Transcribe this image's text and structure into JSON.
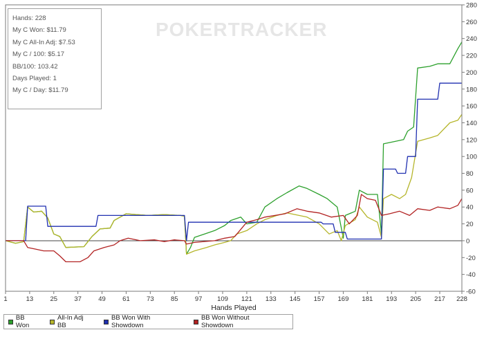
{
  "stats_box": {
    "lines": [
      "Hands: 228",
      "My C Won: $11.79",
      "My C All-In Adj: $7.53",
      "My C / 100: $5.17",
      "BB/100: 103.42",
      "Days Played: 1",
      "My C / Day: $11.79"
    ]
  },
  "watermark": {
    "text": "POKERTRACKER"
  },
  "legend": {
    "items": [
      {
        "label": "BB Won",
        "color": "#2ca02c"
      },
      {
        "label": "All-In Adj BB",
        "color": "#b5b52a"
      },
      {
        "label": "BB Won With Showdown",
        "color": "#1f2fb0"
      },
      {
        "label": "BB Won Without Showdown",
        "color": "#b22222"
      }
    ]
  },
  "chart_data": {
    "type": "line",
    "title": "",
    "xlabel": "Hands Played",
    "ylabel": "",
    "xlim": [
      1,
      228
    ],
    "ylim": [
      -60,
      280
    ],
    "x_ticks": [
      1,
      13,
      25,
      37,
      49,
      61,
      73,
      85,
      97,
      109,
      121,
      133,
      145,
      157,
      169,
      181,
      193,
      205,
      217,
      228
    ],
    "y_ticks": [
      -60,
      -40,
      -20,
      0,
      20,
      40,
      60,
      80,
      100,
      120,
      140,
      160,
      180,
      200,
      220,
      240,
      260,
      280
    ],
    "y_axis_side": "right",
    "grid": false,
    "legend_placement": "bottom",
    "series": [
      {
        "name": "BB Won",
        "color": "#2ca02c",
        "points": [
          [
            1,
            0
          ],
          [
            6,
            -3
          ],
          [
            10,
            -1
          ],
          [
            12,
            40
          ],
          [
            15,
            34
          ],
          [
            19,
            35
          ],
          [
            22,
            27
          ],
          [
            25,
            8
          ],
          [
            28,
            5
          ],
          [
            31,
            -8
          ],
          [
            40,
            -7
          ],
          [
            44,
            5
          ],
          [
            48,
            14
          ],
          [
            53,
            15
          ],
          [
            55,
            24
          ],
          [
            61,
            32
          ],
          [
            66,
            31
          ],
          [
            72,
            30
          ],
          [
            80,
            31
          ],
          [
            88,
            30
          ],
          [
            90,
            29
          ],
          [
            91,
            -16
          ],
          [
            93,
            -8
          ],
          [
            95,
            4
          ],
          [
            100,
            8
          ],
          [
            105,
            12
          ],
          [
            110,
            18
          ],
          [
            113,
            24
          ],
          [
            118,
            28
          ],
          [
            121,
            20
          ],
          [
            126,
            22
          ],
          [
            130,
            40
          ],
          [
            136,
            50
          ],
          [
            141,
            57
          ],
          [
            147,
            65
          ],
          [
            151,
            62
          ],
          [
            157,
            55
          ],
          [
            161,
            50
          ],
          [
            166,
            40
          ],
          [
            169,
            3
          ],
          [
            170,
            30
          ],
          [
            175,
            35
          ],
          [
            177,
            60
          ],
          [
            181,
            55
          ],
          [
            186,
            55
          ],
          [
            188,
            8
          ],
          [
            189,
            115
          ],
          [
            195,
            118
          ],
          [
            199,
            120
          ],
          [
            201,
            130
          ],
          [
            204,
            135
          ],
          [
            206,
            205
          ],
          [
            212,
            207
          ],
          [
            216,
            210
          ],
          [
            222,
            210
          ],
          [
            226,
            228
          ],
          [
            228,
            236
          ]
        ]
      },
      {
        "name": "All-In Adj BB",
        "color": "#b5b52a",
        "points": [
          [
            1,
            0
          ],
          [
            6,
            -3
          ],
          [
            10,
            -1
          ],
          [
            12,
            40
          ],
          [
            15,
            34
          ],
          [
            19,
            35
          ],
          [
            22,
            27
          ],
          [
            25,
            8
          ],
          [
            28,
            5
          ],
          [
            31,
            -8
          ],
          [
            40,
            -7
          ],
          [
            44,
            5
          ],
          [
            48,
            14
          ],
          [
            53,
            15
          ],
          [
            55,
            24
          ],
          [
            61,
            32
          ],
          [
            66,
            31
          ],
          [
            72,
            30
          ],
          [
            80,
            31
          ],
          [
            88,
            30
          ],
          [
            90,
            29
          ],
          [
            91,
            -16
          ],
          [
            95,
            -12
          ],
          [
            101,
            -8
          ],
          [
            105,
            -5
          ],
          [
            110,
            -2
          ],
          [
            113,
            0
          ],
          [
            116,
            8
          ],
          [
            121,
            12
          ],
          [
            126,
            20
          ],
          [
            130,
            25
          ],
          [
            136,
            30
          ],
          [
            141,
            33
          ],
          [
            147,
            30
          ],
          [
            151,
            28
          ],
          [
            157,
            20
          ],
          [
            162,
            8
          ],
          [
            166,
            12
          ],
          [
            168,
            0
          ],
          [
            170,
            18
          ],
          [
            175,
            25
          ],
          [
            177,
            40
          ],
          [
            181,
            28
          ],
          [
            186,
            22
          ],
          [
            188,
            4
          ],
          [
            189,
            50
          ],
          [
            193,
            55
          ],
          [
            197,
            50
          ],
          [
            200,
            55
          ],
          [
            203,
            75
          ],
          [
            206,
            118
          ],
          [
            212,
            122
          ],
          [
            216,
            125
          ],
          [
            222,
            140
          ],
          [
            226,
            143
          ],
          [
            228,
            150
          ]
        ]
      },
      {
        "name": "BB Won With Showdown",
        "color": "#1f2fb0",
        "points": [
          [
            1,
            0
          ],
          [
            11,
            0
          ],
          [
            12,
            41
          ],
          [
            21,
            41
          ],
          [
            22,
            17
          ],
          [
            46,
            17
          ],
          [
            47,
            30
          ],
          [
            90,
            30
          ],
          [
            91,
            0
          ],
          [
            92,
            22
          ],
          [
            158,
            22
          ],
          [
            159,
            20
          ],
          [
            164,
            20
          ],
          [
            165,
            10
          ],
          [
            170,
            10
          ],
          [
            171,
            2
          ],
          [
            188,
            2
          ],
          [
            189,
            85
          ],
          [
            195,
            85
          ],
          [
            196,
            80
          ],
          [
            200,
            80
          ],
          [
            201,
            100
          ],
          [
            205,
            100
          ],
          [
            206,
            168
          ],
          [
            216,
            168
          ],
          [
            217,
            187
          ],
          [
            228,
            187
          ]
        ]
      },
      {
        "name": "BB Won Without Showdown",
        "color": "#b22222",
        "points": [
          [
            1,
            0
          ],
          [
            10,
            0
          ],
          [
            12,
            -8
          ],
          [
            16,
            -10
          ],
          [
            20,
            -12
          ],
          [
            25,
            -12
          ],
          [
            28,
            -18
          ],
          [
            31,
            -25
          ],
          [
            38,
            -25
          ],
          [
            42,
            -20
          ],
          [
            45,
            -12
          ],
          [
            50,
            -8
          ],
          [
            55,
            -5
          ],
          [
            58,
            0
          ],
          [
            62,
            3
          ],
          [
            68,
            0
          ],
          [
            75,
            1
          ],
          [
            80,
            -1
          ],
          [
            85,
            1
          ],
          [
            90,
            0
          ],
          [
            91,
            -4
          ],
          [
            95,
            -2
          ],
          [
            105,
            0
          ],
          [
            110,
            3
          ],
          [
            115,
            5
          ],
          [
            121,
            22
          ],
          [
            126,
            25
          ],
          [
            130,
            28
          ],
          [
            140,
            32
          ],
          [
            146,
            38
          ],
          [
            151,
            35
          ],
          [
            157,
            33
          ],
          [
            163,
            28
          ],
          [
            169,
            30
          ],
          [
            172,
            20
          ],
          [
            176,
            30
          ],
          [
            178,
            55
          ],
          [
            181,
            50
          ],
          [
            185,
            48
          ],
          [
            188,
            30
          ],
          [
            192,
            32
          ],
          [
            197,
            35
          ],
          [
            202,
            30
          ],
          [
            206,
            38
          ],
          [
            212,
            36
          ],
          [
            216,
            40
          ],
          [
            222,
            38
          ],
          [
            226,
            42
          ],
          [
            228,
            50
          ]
        ]
      }
    ]
  }
}
